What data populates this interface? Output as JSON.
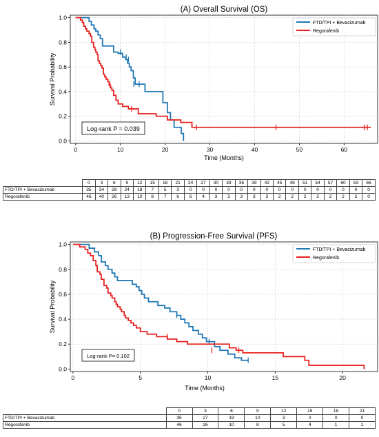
{
  "charts": [
    {
      "id": "A",
      "title": "(A) Overall Survival (OS)",
      "xlabel": "Time (Months)",
      "ylabel": "Survival Probability",
      "xticks": [
        0,
        10,
        20,
        30,
        40,
        50,
        60
      ],
      "yticks": [
        "0.0",
        "0.2",
        "0.4",
        "0.6",
        "0.8",
        "1.0"
      ],
      "legend": [
        "FTD/TPI + Bevacizumab",
        "Regorafenib"
      ],
      "annotation": "Log-rank P = 0.039",
      "risk_table": {
        "times": [
          "0",
          "3",
          "6",
          "9",
          "12",
          "15",
          "18",
          "21",
          "24",
          "27",
          "30",
          "33",
          "36",
          "39",
          "42",
          "45",
          "48",
          "51",
          "54",
          "57",
          "60",
          "63",
          "66"
        ],
        "rows": [
          {
            "label": "FTD/TPI + Bevacizumab",
            "values": [
              "35",
              "34",
              "28",
              "24",
              "18",
              "7",
              "5",
              "3",
              "0",
              "0",
              "0",
              "0",
              "0",
              "0",
              "0",
              "0",
              "0",
              "0",
              "0",
              "0",
              "0",
              "0",
              "0"
            ]
          },
          {
            "label": "Regorafenib",
            "values": [
              "46",
              "40",
              "26",
              "13",
              "10",
              "8",
              "7",
              "6",
              "6",
              "4",
              "3",
              "3",
              "3",
              "3",
              "3",
              "2",
              "2",
              "2",
              "2",
              "2",
              "2",
              "2",
              "0"
            ]
          }
        ]
      }
    },
    {
      "id": "B",
      "title": "(B) Progression-Free Survival (PFS)",
      "xlabel": "Time (Months)",
      "ylabel": "Survival Probability",
      "xticks": [
        0,
        5,
        10,
        15,
        20
      ],
      "yticks": [
        "0.0",
        "0.2",
        "0.4",
        "0.6",
        "0.8",
        "1.0"
      ],
      "legend": [
        "FTD/TPI + Bevacizumab",
        "Regorafenib"
      ],
      "annotation": "Log-rank P= 0.102",
      "risk_table": {
        "times": [
          "0",
          "3",
          "6",
          "9",
          "12",
          "15",
          "18",
          "21"
        ],
        "rows": [
          {
            "label": "FTD/TPI + Bevacizumab",
            "values": [
              "35",
              "27",
              "19",
              "10",
              "3",
              "0",
              "0",
              "0"
            ]
          },
          {
            "label": "Regorafenib",
            "values": [
              "46",
              "26",
              "10",
              "8",
              "5",
              "4",
              "1",
              "1"
            ]
          }
        ]
      }
    }
  ],
  "chart_data": [
    {
      "type": "line",
      "title": "(A) Overall Survival (OS)",
      "xlabel": "Time (Months)",
      "ylabel": "Survival Probability",
      "xlim": [
        -1.2,
        67.5
      ],
      "ylim": [
        -0.02,
        1.02
      ],
      "grid": true,
      "legend_position": "top-right",
      "colors": {
        "FTD/TPI + Bevacizumab": "#1f77b4",
        "Regorafenib": "#e8201f"
      },
      "series": [
        {
          "name": "FTD/TPI + Bevacizumab",
          "steps": [
            [
              0,
              1.0
            ],
            [
              3,
              0.97
            ],
            [
              3.5,
              0.94
            ],
            [
              4.1,
              0.91
            ],
            [
              4.5,
              0.89
            ],
            [
              5,
              0.86
            ],
            [
              5.5,
              0.83
            ],
            [
              6,
              0.77
            ],
            [
              8.5,
              0.72
            ],
            [
              9.5,
              0.71
            ],
            [
              10.5,
              0.68
            ],
            [
              11.2,
              0.66
            ],
            [
              11.6,
              0.63
            ],
            [
              12,
              0.6
            ],
            [
              12.4,
              0.57
            ],
            [
              12.9,
              0.51
            ],
            [
              13.3,
              0.46
            ],
            [
              15.5,
              0.4
            ],
            [
              19.5,
              0.31
            ],
            [
              20.5,
              0.23
            ],
            [
              21.2,
              0.17
            ],
            [
              22,
              0.11
            ],
            [
              23.6,
              0.06
            ],
            [
              24.1,
              0.0
            ]
          ],
          "censors": [
            [
              10,
              0.72
            ],
            [
              11.3,
              0.68
            ],
            [
              11.8,
              0.66
            ],
            [
              13,
              0.46
            ],
            [
              14.2,
              0.46
            ]
          ]
        },
        {
          "name": "Regorafenib",
          "steps": [
            [
              0,
              1.0
            ],
            [
              1.1,
              0.98
            ],
            [
              1.5,
              0.96
            ],
            [
              1.8,
              0.93
            ],
            [
              2.2,
              0.91
            ],
            [
              2.5,
              0.89
            ],
            [
              3,
              0.87
            ],
            [
              3.3,
              0.85
            ],
            [
              3.6,
              0.8
            ],
            [
              4.0,
              0.76
            ],
            [
              4.3,
              0.74
            ],
            [
              4.5,
              0.72
            ],
            [
              4.8,
              0.7
            ],
            [
              5.0,
              0.65
            ],
            [
              5.3,
              0.63
            ],
            [
              5.6,
              0.61
            ],
            [
              5.9,
              0.59
            ],
            [
              6.2,
              0.54
            ],
            [
              6.5,
              0.52
            ],
            [
              6.8,
              0.5
            ],
            [
              7.2,
              0.48
            ],
            [
              7.5,
              0.45
            ],
            [
              7.8,
              0.43
            ],
            [
              8.1,
              0.41
            ],
            [
              8.5,
              0.37
            ],
            [
              9.0,
              0.33
            ],
            [
              9.5,
              0.3
            ],
            [
              10.5,
              0.28
            ],
            [
              11.8,
              0.26
            ],
            [
              14.0,
              0.22
            ],
            [
              18.0,
              0.2
            ],
            [
              20.5,
              0.17
            ],
            [
              23.5,
              0.15
            ],
            [
              26,
              0.11
            ],
            [
              66,
              0.11
            ]
          ],
          "censors": [
            [
              7.7,
              0.45
            ],
            [
              12.5,
              0.26
            ],
            [
              27,
              0.11
            ],
            [
              44.8,
              0.11
            ],
            [
              64.5,
              0.11
            ],
            [
              65.2,
              0.11
            ]
          ]
        }
      ]
    },
    {
      "type": "line",
      "title": "(B) Progression-Free Survival (PFS)",
      "xlabel": "Time (Months)",
      "ylabel": "Survival Probability",
      "xlim": [
        -0.2,
        22.6
      ],
      "ylim": [
        -0.02,
        1.02
      ],
      "grid": true,
      "legend_position": "top-right",
      "colors": {
        "FTD/TPI + Bevacizumab": "#1f77b4",
        "Regorafenib": "#e8201f"
      },
      "series": [
        {
          "name": "FTD/TPI + Bevacizumab",
          "steps": [
            [
              0,
              1.0
            ],
            [
              1.2,
              0.97
            ],
            [
              1.6,
              0.94
            ],
            [
              1.9,
              0.91
            ],
            [
              2.1,
              0.86
            ],
            [
              2.4,
              0.83
            ],
            [
              2.6,
              0.8
            ],
            [
              2.9,
              0.77
            ],
            [
              3.1,
              0.74
            ],
            [
              3.3,
              0.71
            ],
            [
              4.4,
              0.68
            ],
            [
              4.7,
              0.66
            ],
            [
              4.9,
              0.63
            ],
            [
              5.1,
              0.6
            ],
            [
              5.3,
              0.57
            ],
            [
              5.6,
              0.54
            ],
            [
              6.3,
              0.51
            ],
            [
              6.8,
              0.49
            ],
            [
              7.2,
              0.46
            ],
            [
              7.7,
              0.43
            ],
            [
              8.0,
              0.4
            ],
            [
              8.3,
              0.37
            ],
            [
              8.6,
              0.34
            ],
            [
              8.9,
              0.31
            ],
            [
              9.3,
              0.28
            ],
            [
              9.6,
              0.25
            ],
            [
              9.9,
              0.22
            ],
            [
              10.5,
              0.18
            ],
            [
              10.9,
              0.15
            ],
            [
              11.5,
              0.12
            ],
            [
              12.0,
              0.09
            ],
            [
              12.5,
              0.07
            ],
            [
              13,
              0.07
            ]
          ],
          "censors": [
            [
              7.7,
              0.43
            ],
            [
              10.1,
              0.22
            ],
            [
              13,
              0.07
            ]
          ]
        },
        {
          "name": "Regorafenib",
          "steps": [
            [
              0,
              1.0
            ],
            [
              0.5,
              0.98
            ],
            [
              0.9,
              0.96
            ],
            [
              1.1,
              0.93
            ],
            [
              1.3,
              0.91
            ],
            [
              1.5,
              0.87
            ],
            [
              1.7,
              0.83
            ],
            [
              1.8,
              0.78
            ],
            [
              2.0,
              0.76
            ],
            [
              2.1,
              0.72
            ],
            [
              2.3,
              0.67
            ],
            [
              2.5,
              0.65
            ],
            [
              2.6,
              0.61
            ],
            [
              2.8,
              0.59
            ],
            [
              2.9,
              0.57
            ],
            [
              3.1,
              0.54
            ],
            [
              3.2,
              0.52
            ],
            [
              3.3,
              0.5
            ],
            [
              3.5,
              0.48
            ],
            [
              3.6,
              0.46
            ],
            [
              3.8,
              0.43
            ],
            [
              3.9,
              0.41
            ],
            [
              4.1,
              0.39
            ],
            [
              4.3,
              0.37
            ],
            [
              4.5,
              0.35
            ],
            [
              4.7,
              0.33
            ],
            [
              5.0,
              0.3
            ],
            [
              5.5,
              0.28
            ],
            [
              6.2,
              0.26
            ],
            [
              7.0,
              0.24
            ],
            [
              7.7,
              0.22
            ],
            [
              8.5,
              0.2
            ],
            [
              11.6,
              0.17
            ],
            [
              12.1,
              0.15
            ],
            [
              12.6,
              0.13
            ],
            [
              15.6,
              0.1
            ],
            [
              17.2,
              0.07
            ],
            [
              17.5,
              0.03
            ],
            [
              21.6,
              0.0
            ]
          ],
          "censors": [
            [
              7.0,
              0.26
            ],
            [
              10.3,
              0.15
            ],
            [
              12.3,
              0.15
            ]
          ]
        }
      ]
    }
  ]
}
